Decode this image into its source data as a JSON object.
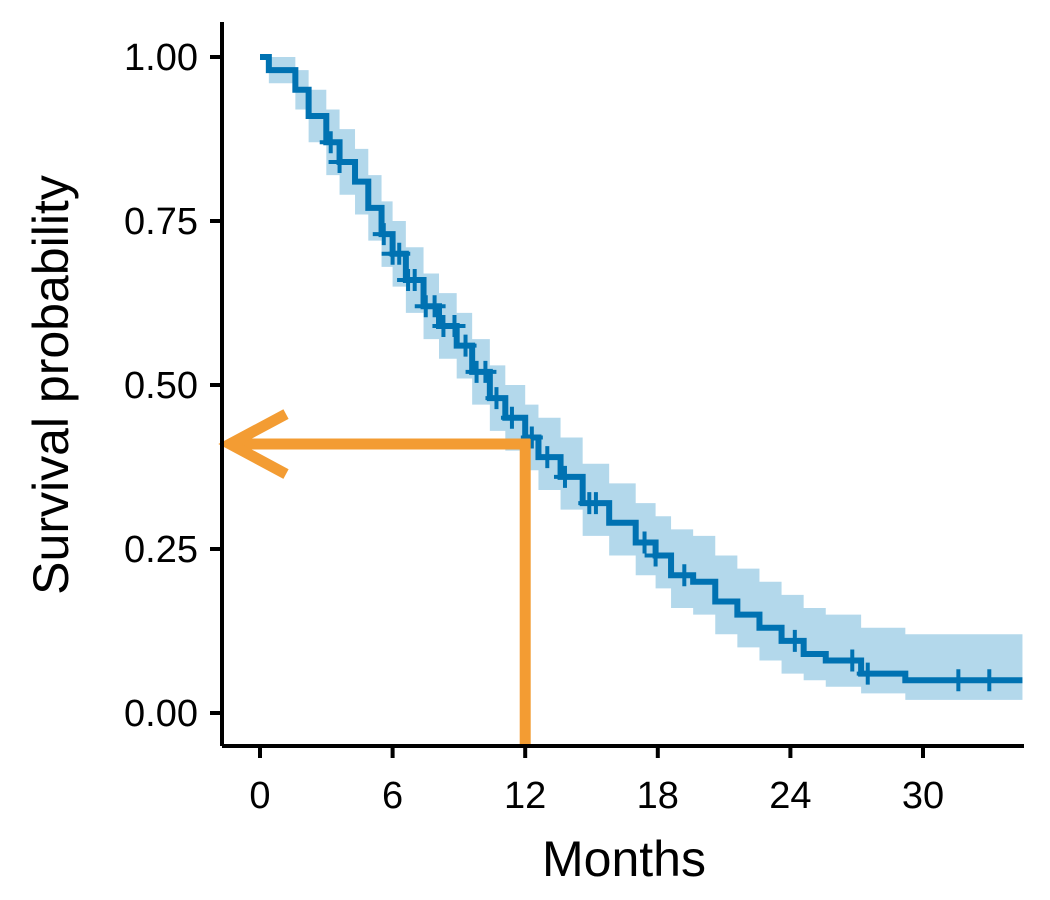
{
  "chart_data": {
    "type": "line",
    "title": "",
    "xlabel": "Months",
    "ylabel": "Survival probability",
    "xlim": [
      0,
      34.5
    ],
    "ylim": [
      0,
      1
    ],
    "x_ticks": [
      0,
      6,
      12,
      18,
      24,
      30
    ],
    "x_tick_labels": [
      "0",
      "6",
      "12",
      "18",
      "24",
      "30"
    ],
    "y_ticks": [
      0,
      0.25,
      0.5,
      0.75,
      1
    ],
    "y_tick_labels": [
      "0.00",
      "0.25",
      "0.50",
      "0.75",
      "1.00"
    ],
    "grid": false,
    "legend": "none",
    "colors": {
      "curve": "#0072b2",
      "band": "#b3d8eb",
      "annotation": "#f39c33"
    },
    "series": [
      {
        "step_x": [
          0,
          0.4,
          1.6,
          2.2,
          3.0,
          3.6,
          4.3,
          4.9,
          5.5,
          6.0,
          6.6,
          7.4,
          8.1,
          8.9,
          9.6,
          10.4,
          11.1,
          12.0,
          12.6,
          13.6,
          14.6,
          15.8,
          17.0,
          17.9,
          18.6,
          19.6,
          20.6,
          21.6,
          22.6,
          23.6,
          24.6,
          25.6,
          27.2,
          29.2,
          34.5
        ],
        "survival": [
          1.0,
          0.98,
          0.95,
          0.91,
          0.87,
          0.84,
          0.81,
          0.77,
          0.73,
          0.7,
          0.66,
          0.62,
          0.59,
          0.56,
          0.52,
          0.48,
          0.45,
          0.42,
          0.39,
          0.36,
          0.32,
          0.29,
          0.26,
          0.24,
          0.21,
          0.2,
          0.17,
          0.15,
          0.13,
          0.11,
          0.09,
          0.08,
          0.06,
          0.05,
          0.05
        ],
        "ci_upper": [
          1.0,
          1.0,
          0.98,
          0.95,
          0.92,
          0.89,
          0.86,
          0.82,
          0.78,
          0.75,
          0.71,
          0.67,
          0.64,
          0.61,
          0.57,
          0.53,
          0.5,
          0.47,
          0.45,
          0.42,
          0.38,
          0.35,
          0.32,
          0.3,
          0.28,
          0.27,
          0.24,
          0.22,
          0.2,
          0.18,
          0.16,
          0.15,
          0.13,
          0.12,
          0.12
        ],
        "ci_lower": [
          1.0,
          0.96,
          0.92,
          0.87,
          0.82,
          0.79,
          0.76,
          0.72,
          0.68,
          0.65,
          0.61,
          0.57,
          0.54,
          0.51,
          0.47,
          0.43,
          0.4,
          0.37,
          0.34,
          0.31,
          0.27,
          0.24,
          0.21,
          0.19,
          0.16,
          0.15,
          0.12,
          0.1,
          0.08,
          0.06,
          0.05,
          0.04,
          0.03,
          0.02,
          0.02
        ],
        "censor_x": [
          3.2,
          3.6,
          5.6,
          6.0,
          6.3,
          6.7,
          7.0,
          7.5,
          7.9,
          8.3,
          8.8,
          9.3,
          9.8,
          10.2,
          10.7,
          11.4,
          12.3,
          13.0,
          13.8,
          14.9,
          15.2,
          17.4,
          17.9,
          19.2,
          24.2,
          26.8,
          27.5,
          31.6,
          33.0
        ]
      }
    ],
    "annotation": {
      "x": 12,
      "y": 0.41
    }
  }
}
